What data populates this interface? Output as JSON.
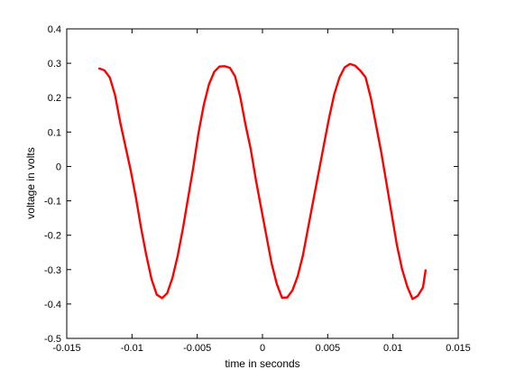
{
  "chart_data": {
    "type": "line",
    "xlabel": "time in seconds",
    "ylabel": "voltage in volts",
    "xlim": [
      -0.015,
      0.015
    ],
    "ylim": [
      -0.5,
      0.4
    ],
    "grid": false,
    "x_ticks": [
      "-0.015",
      "-0.01",
      "-0.005",
      "0",
      "0.005",
      "0.01",
      "0.015"
    ],
    "y_ticks": [
      "0.4",
      "0.3",
      "0.2",
      "0.1",
      "0",
      "-0.1",
      "-0.2",
      "-0.3",
      "-0.4",
      "-0.5"
    ],
    "series": [
      {
        "color": "#ff0000",
        "x": [
          -0.0125,
          -0.0121,
          -0.0117,
          -0.0113,
          -0.0109,
          -0.0105,
          -0.0101,
          -0.0097,
          -0.0093,
          -0.0089,
          -0.0085,
          -0.0081,
          -0.0077,
          -0.0073,
          -0.0069,
          -0.0065,
          -0.0061,
          -0.0057,
          -0.0053,
          -0.0049,
          -0.0045,
          -0.0041,
          -0.0037,
          -0.0033,
          -0.0029,
          -0.0025,
          -0.0021,
          -0.0017,
          -0.0013,
          -0.0009,
          -0.0005,
          -0.0001,
          0.0003,
          0.0007,
          0.0011,
          0.0015,
          0.0019,
          0.0023,
          0.0027,
          0.0031,
          0.0035,
          0.0039,
          0.0043,
          0.0047,
          0.0051,
          0.0055,
          0.0059,
          0.0063,
          0.0067,
          0.0071,
          0.0075,
          0.0079,
          0.0083,
          0.0087,
          0.0091,
          0.0095,
          0.0099,
          0.0103,
          0.0107,
          0.0111,
          0.0115,
          0.0119,
          0.0123,
          0.0125
        ],
        "y": [
          0.285,
          0.28,
          0.26,
          0.21,
          0.13,
          0.06,
          -0.01,
          -0.09,
          -0.18,
          -0.26,
          -0.33,
          -0.375,
          -0.385,
          -0.37,
          -0.325,
          -0.26,
          -0.18,
          -0.09,
          0.0,
          0.1,
          0.18,
          0.24,
          0.275,
          0.29,
          0.29,
          0.285,
          0.26,
          0.2,
          0.12,
          0.05,
          -0.04,
          -0.12,
          -0.2,
          -0.28,
          -0.34,
          -0.38,
          -0.38,
          -0.36,
          -0.32,
          -0.26,
          -0.18,
          -0.1,
          -0.02,
          0.06,
          0.14,
          0.21,
          0.26,
          0.29,
          0.3,
          0.295,
          0.28,
          0.26,
          0.2,
          0.12,
          0.04,
          -0.05,
          -0.14,
          -0.23,
          -0.3,
          -0.35,
          -0.385,
          -0.375,
          -0.35,
          -0.3
        ]
      }
    ]
  }
}
